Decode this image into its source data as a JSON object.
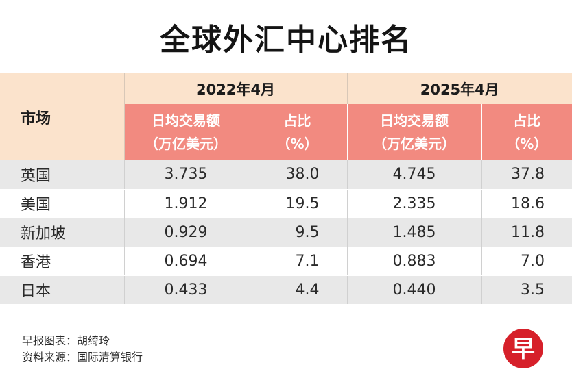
{
  "title": "全球外汇中心排名",
  "chart_data": {
    "type": "table",
    "title": "全球外汇中心排名",
    "header": {
      "market": "市场",
      "periods": [
        "2022年4月",
        "2025年4月"
      ],
      "sub_volume_line1": "日均交易额",
      "sub_volume_line2": "（万亿美元）",
      "sub_share_line1": "占比",
      "sub_share_line2": "（%）"
    },
    "rows": [
      {
        "market": "英国",
        "volume_2022": "3.735",
        "share_2022": "38.0",
        "volume_2025": "4.745",
        "share_2025": "37.8"
      },
      {
        "market": "美国",
        "volume_2022": "1.912",
        "share_2022": "19.5",
        "volume_2025": "2.335",
        "share_2025": "18.6"
      },
      {
        "market": "新加坡",
        "volume_2022": "0.929",
        "share_2022": "9.5",
        "volume_2025": "1.485",
        "share_2025": "11.8"
      },
      {
        "market": "香港",
        "volume_2022": "0.694",
        "share_2022": "7.1",
        "volume_2025": "0.883",
        "share_2025": "7.0"
      },
      {
        "market": "日本",
        "volume_2022": "0.433",
        "share_2022": "4.4",
        "volume_2025": "0.440",
        "share_2025": "3.5"
      }
    ]
  },
  "footer": {
    "credit": "早报图表：胡绮玲",
    "source": "资料来源：国际清算银行"
  },
  "logo": {
    "text": "早",
    "color": "#d6202a"
  }
}
